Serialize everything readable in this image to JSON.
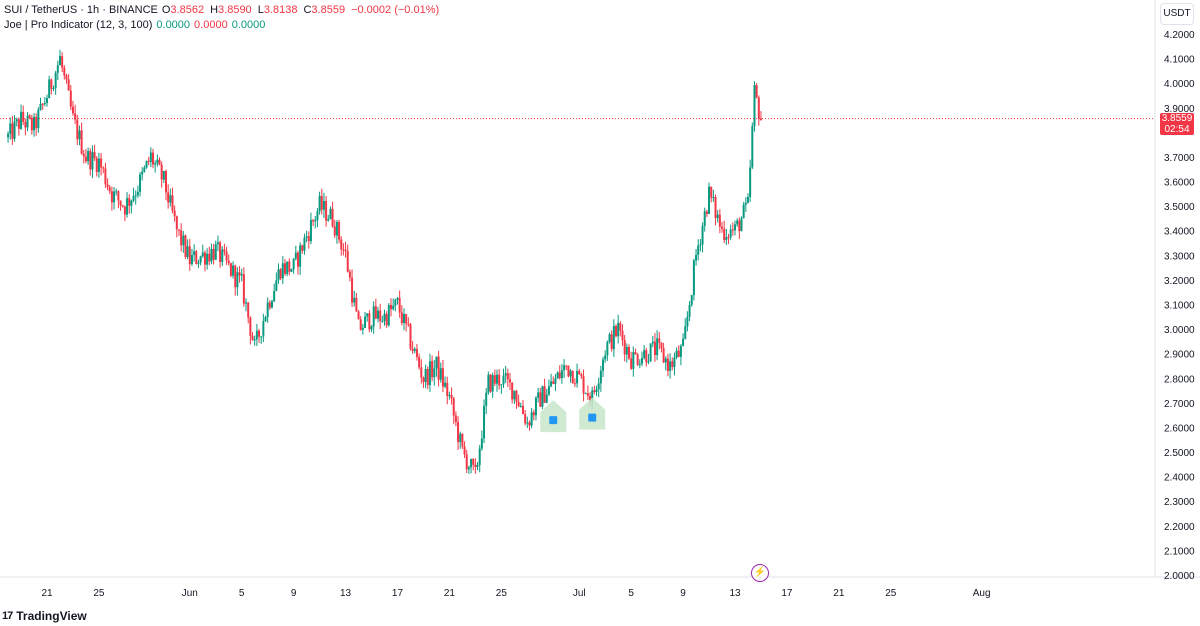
{
  "legend": {
    "symbol": "SUI / TetherUS · 1h · BINANCE",
    "open_key": "O",
    "open": "3.8562",
    "high_key": "H",
    "high": "3.8590",
    "low_key": "L",
    "low": "3.8138",
    "close_key": "C",
    "close": "3.8559",
    "change": "−0.0002 (−0.01%)",
    "indicator_name": "Joe | Pro Indicator (12, 3, 100)",
    "indicator_values": [
      "0.0000",
      "0.0000",
      "0.0000"
    ]
  },
  "currency": "USDT",
  "last_price": {
    "price": "3.8559",
    "countdown": "02:54"
  },
  "branding": {
    "logo_mark": "17",
    "name": "TradingView"
  },
  "colors": {
    "up": "#089981",
    "down": "#f23645",
    "indicator_alert": "#9c27b0",
    "signal_bg": "#c8e6c9"
  },
  "icons": [
    "tradingview-logo-icon",
    "lightning-icon",
    "signal-icon"
  ],
  "chart_data": {
    "type": "candlestick",
    "ylim": [
      1.95,
      4.26
    ],
    "yticks": [
      "4.2000",
      "4.1000",
      "4.0000",
      "3.9000",
      "3.7000",
      "3.6000",
      "3.5000",
      "3.4000",
      "3.3000",
      "3.2000",
      "3.1000",
      "3.0000",
      "2.9000",
      "2.8000",
      "2.7000",
      "2.6000",
      "2.5000",
      "2.4000",
      "2.3000",
      "2.2000",
      "2.1000",
      "2.0000"
    ],
    "xticks": [
      "21",
      "25",
      "Jun",
      "5",
      "9",
      "13",
      "17",
      "21",
      "25",
      "Jul",
      "5",
      "9",
      "13",
      "17",
      "21",
      "25",
      "Aug"
    ],
    "x_start": "2025-05-18",
    "x_end": "2025-08-09",
    "price_path": [
      [
        "2025-05-18",
        3.78
      ],
      [
        "2025-05-19",
        3.85
      ],
      [
        "2025-05-20",
        3.82
      ],
      [
        "2025-05-21",
        3.95
      ],
      [
        "2025-05-22",
        4.1
      ],
      [
        "2025-05-23",
        3.85
      ],
      [
        "2025-05-24",
        3.7
      ],
      [
        "2025-05-25",
        3.68
      ],
      [
        "2025-05-26",
        3.55
      ],
      [
        "2025-05-27",
        3.5
      ],
      [
        "2025-05-28",
        3.58
      ],
      [
        "2025-05-29",
        3.7
      ],
      [
        "2025-05-30",
        3.6
      ],
      [
        "2025-05-31",
        3.4
      ],
      [
        "2025-06-01",
        3.28
      ],
      [
        "2025-06-02",
        3.3
      ],
      [
        "2025-06-03",
        3.32
      ],
      [
        "2025-06-04",
        3.25
      ],
      [
        "2025-06-05",
        3.18
      ],
      [
        "2025-06-06",
        2.92
      ],
      [
        "2025-06-07",
        3.1
      ],
      [
        "2025-06-08",
        3.25
      ],
      [
        "2025-06-09",
        3.25
      ],
      [
        "2025-06-10",
        3.38
      ],
      [
        "2025-06-11",
        3.5
      ],
      [
        "2025-06-12",
        3.45
      ],
      [
        "2025-06-13",
        3.3
      ],
      [
        "2025-06-14",
        3.0
      ],
      [
        "2025-06-15",
        3.05
      ],
      [
        "2025-06-16",
        3.05
      ],
      [
        "2025-06-17",
        3.1
      ],
      [
        "2025-06-18",
        2.95
      ],
      [
        "2025-06-19",
        2.8
      ],
      [
        "2025-06-20",
        2.85
      ],
      [
        "2025-06-21",
        2.72
      ],
      [
        "2025-06-22",
        2.5
      ],
      [
        "2025-06-23",
        2.4
      ],
      [
        "2025-06-24",
        2.78
      ],
      [
        "2025-06-25",
        2.8
      ],
      [
        "2025-06-26",
        2.75
      ],
      [
        "2025-06-27",
        2.62
      ],
      [
        "2025-06-28",
        2.72
      ],
      [
        "2025-06-29",
        2.78
      ],
      [
        "2025-06-30",
        2.85
      ],
      [
        "2025-07-01",
        2.8
      ],
      [
        "2025-07-02",
        2.72
      ],
      [
        "2025-07-03",
        2.92
      ],
      [
        "2025-07-04",
        3.0
      ],
      [
        "2025-07-05",
        2.88
      ],
      [
        "2025-07-06",
        2.9
      ],
      [
        "2025-07-07",
        2.92
      ],
      [
        "2025-07-08",
        2.85
      ],
      [
        "2025-07-09",
        2.92
      ],
      [
        "2025-07-10",
        3.3
      ],
      [
        "2025-07-11",
        3.55
      ],
      [
        "2025-07-12",
        3.4
      ],
      [
        "2025-07-13",
        3.4
      ],
      [
        "2025-07-14",
        3.5
      ],
      [
        "2025-07-14T12",
        3.96
      ],
      [
        "2025-07-15",
        3.86
      ]
    ],
    "signals": [
      {
        "date": "2025-06-29",
        "price": 2.63
      },
      {
        "date": "2025-07-02",
        "price": 2.64
      }
    ],
    "last_price_line": 3.8559
  }
}
